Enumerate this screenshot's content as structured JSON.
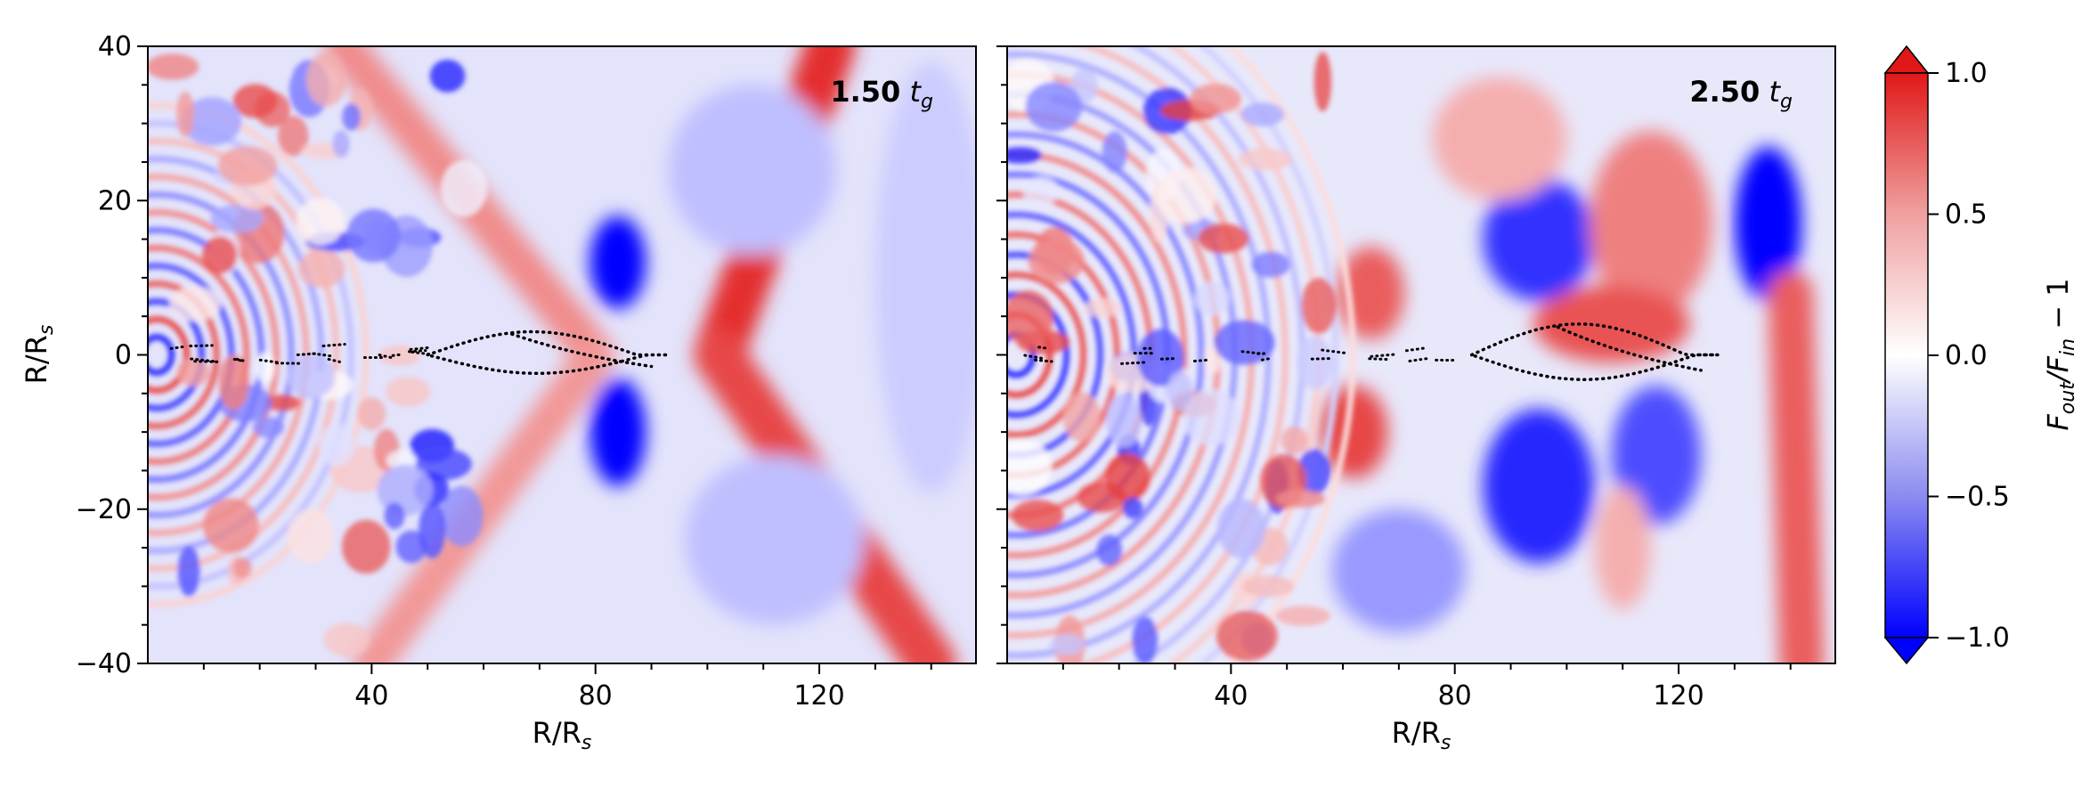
{
  "chart_data": [
    {
      "type": "heatmap",
      "panel_label_value": "1.50",
      "panel_label_unit": "t",
      "panel_label_unit_sub": "g",
      "xlabel": "R/R",
      "xlabel_sub": "s",
      "ylabel": "R/R",
      "ylabel_sub": "s",
      "xlim": [
        0,
        148
      ],
      "ylim": [
        -40,
        40
      ],
      "xticks": [
        40,
        80,
        120
      ],
      "xtick_labels": [
        "40",
        "80",
        "120"
      ],
      "yticks": [
        -40,
        -20,
        0,
        20,
        40
      ],
      "ytick_labels": [
        "−40",
        "−20",
        "0",
        "20",
        "40"
      ],
      "features": [
        {
          "kind": "blob",
          "x": 84,
          "y": 12,
          "rx": 5,
          "ry": 6,
          "value": -1.0
        },
        {
          "kind": "blob",
          "x": 84,
          "y": -10,
          "rx": 5,
          "ry": 7,
          "value": -1.0
        },
        {
          "kind": "band",
          "from": [
            102,
            0
          ],
          "to": [
            122,
            40
          ],
          "width": 9,
          "value": 0.9
        },
        {
          "kind": "band",
          "from": [
            102,
            0
          ],
          "to": [
            140,
            -40
          ],
          "width": 9,
          "value": 0.8
        },
        {
          "kind": "band",
          "from": [
            35,
            40
          ],
          "to": [
            80,
            0
          ],
          "width": 7,
          "value": 0.5
        },
        {
          "kind": "band",
          "from": [
            80,
            0
          ],
          "to": [
            40,
            -40
          ],
          "width": 7,
          "value": 0.45
        },
        {
          "kind": "blob",
          "x": 108,
          "y": 24,
          "rx": 15,
          "ry": 11,
          "value": -0.25
        },
        {
          "kind": "blob",
          "x": 112,
          "y": -24,
          "rx": 16,
          "ry": 11,
          "value": -0.25
        },
        {
          "kind": "blob",
          "x": 140,
          "y": 10,
          "rx": 10,
          "ry": 28,
          "value": -0.2
        }
      ],
      "contour": {
        "x_range": [
          50,
          93
        ],
        "y_half_width": 3
      }
    },
    {
      "type": "heatmap",
      "panel_label_value": "2.50",
      "panel_label_unit": "t",
      "panel_label_unit_sub": "g",
      "xlabel": "R/R",
      "xlabel_sub": "s",
      "xlim": [
        0,
        148
      ],
      "ylim": [
        -40,
        40
      ],
      "xticks": [
        40,
        80,
        120
      ],
      "xtick_labels": [
        "40",
        "80",
        "120"
      ],
      "features": [
        {
          "kind": "blob",
          "x": 136,
          "y": 17,
          "rx": 6,
          "ry": 10,
          "value": -1.0
        },
        {
          "kind": "blob",
          "x": 95,
          "y": 15,
          "rx": 10,
          "ry": 8,
          "value": -0.8
        },
        {
          "kind": "blob",
          "x": 95,
          "y": -17,
          "rx": 10,
          "ry": 10,
          "value": -0.85
        },
        {
          "kind": "blob",
          "x": 116,
          "y": -13,
          "rx": 8,
          "ry": 9,
          "value": -0.7
        },
        {
          "kind": "blob",
          "x": 115,
          "y": 17,
          "rx": 11,
          "ry": 12,
          "value": 0.55
        },
        {
          "kind": "blob",
          "x": 108,
          "y": 4,
          "rx": 14,
          "ry": 5,
          "value": 0.75
        },
        {
          "kind": "blob",
          "x": 62,
          "y": -10,
          "rx": 6,
          "ry": 6,
          "value": 0.8
        },
        {
          "kind": "blob",
          "x": 65,
          "y": 8,
          "rx": 6,
          "ry": 6,
          "value": 0.7
        },
        {
          "kind": "blob",
          "x": 110,
          "y": -25,
          "rx": 5,
          "ry": 8,
          "value": 0.35
        },
        {
          "kind": "band",
          "from": [
            140,
            8
          ],
          "to": [
            142,
            -40
          ],
          "width": 8,
          "value": 0.7
        },
        {
          "kind": "blob",
          "x": 88,
          "y": 28,
          "rx": 12,
          "ry": 8,
          "value": 0.35
        },
        {
          "kind": "blob",
          "x": 70,
          "y": -28,
          "rx": 12,
          "ry": 8,
          "value": -0.4
        }
      ],
      "contour": {
        "x_range": [
          83,
          127
        ],
        "y_half_width": 4
      }
    }
  ],
  "colorbar": {
    "label": "F",
    "label_sub1": "out",
    "label_mid": "/F",
    "label_sub2": "in",
    "label_tail": " − 1",
    "range": [
      -1.0,
      1.0
    ],
    "ticks": [
      1.0,
      0.5,
      0.0,
      -0.5,
      -1.0
    ],
    "tick_labels": [
      "1.0",
      "0.5",
      "0.0",
      "−0.5",
      "−1.0"
    ],
    "colors": {
      "low": "#0000ff",
      "mid": "#ffffff",
      "high": "#e11818"
    },
    "extend": "both"
  }
}
